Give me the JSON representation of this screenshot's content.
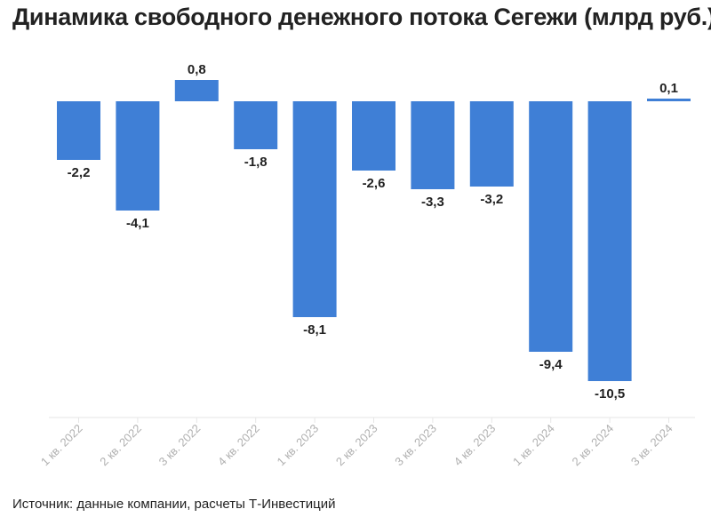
{
  "title": "Динамика свободного денежного потока Сегежи (млрд руб.)",
  "source": "Источник: данные компании, расчеты Т-Инвестиций",
  "chart_data": {
    "type": "bar",
    "title": "Динамика свободного денежного потока Сегежи (млрд руб.)",
    "categories": [
      "1 кв. 2022",
      "2 кв. 2022",
      "3 кв. 2022",
      "4 кв. 2022",
      "1 кв. 2023",
      "2 кв. 2023",
      "3 кв. 2023",
      "4 кв. 2023",
      "1 кв. 2024",
      "2 кв. 2024",
      "3 кв. 2024"
    ],
    "values": [
      -2.2,
      -4.1,
      0.8,
      -1.8,
      -8.1,
      -2.6,
      -3.3,
      -3.2,
      -9.4,
      -10.5,
      0.1
    ],
    "value_labels": [
      "-2,2",
      "-4,1",
      "0,8",
      "-1,8",
      "-8,1",
      "-2,6",
      "-3,3",
      "-3,2",
      "-9,4",
      "-10,5",
      "0,1"
    ],
    "xlabel": "",
    "ylabel": "",
    "ylim": [
      -11.9,
      1.5
    ],
    "grid": false,
    "legend": "none",
    "bar_color": "#3f7fd6",
    "label_color": "#222222",
    "tick_color": "#b0b0b0",
    "axis_color": "#e6e6e6"
  }
}
